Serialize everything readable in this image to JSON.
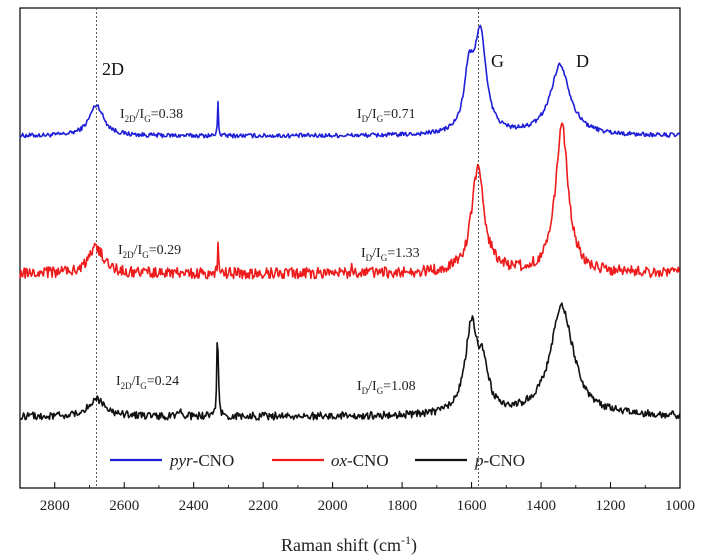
{
  "chart_data": {
    "type": "line",
    "title": "",
    "xlabel": "Raman shift (cm",
    "xlabel_sup": "-1",
    "xlabel_close": ")",
    "ylabel": "",
    "xlim": [
      2900,
      1000
    ],
    "x_reversed": true,
    "x_ticks": [
      "2800",
      "2600",
      "2400",
      "2200",
      "2000",
      "1800",
      "1600",
      "1400",
      "1200",
      "1000"
    ],
    "grid": false,
    "legend_position": "bottom-inside",
    "reference_lines": [
      2680,
      1580
    ],
    "series": [
      {
        "name": "pyr-CNO",
        "name_italic": "pyr",
        "name_rest": "-CNO",
        "color": "#1f1fd8",
        "baseline": 0.0,
        "peaks": [
          [
            2680,
            0.28,
            25
          ],
          [
            1608,
            0.5,
            16
          ],
          [
            1575,
            0.9,
            20
          ],
          [
            1345,
            0.64,
            34
          ],
          [
            2330,
            0.32,
            1.5
          ]
        ],
        "noise": 0.02
      },
      {
        "name": "ox-CNO",
        "name_italic": "ox",
        "name_rest": "-CNO",
        "color": "#ee1c1c",
        "baseline": -1.25,
        "peaks": [
          [
            2680,
            0.23,
            27
          ],
          [
            1582,
            0.95,
            22
          ],
          [
            1340,
            1.35,
            22
          ],
          [
            2330,
            0.27,
            1.5
          ],
          [
            1945,
            0.12,
            1.5
          ]
        ],
        "noise": 0.05
      },
      {
        "name": "p-CNO",
        "name_italic": "p",
        "name_rest": "-CNO",
        "color": "#111111",
        "baseline": -2.55,
        "peaks": [
          [
            2680,
            0.16,
            28
          ],
          [
            1600,
            0.8,
            22
          ],
          [
            1565,
            0.35,
            16
          ],
          [
            1340,
            1.0,
            40
          ],
          [
            2332,
            0.5,
            1.5
          ],
          [
            2330,
            0.38,
            3
          ],
          [
            2440,
            0.07,
            4
          ]
        ],
        "noise": 0.035
      }
    ]
  },
  "annotations": {
    "peak_2d": "2D",
    "peak_g": "G",
    "peak_d": "D",
    "ratios": [
      {
        "i1": "I",
        "s1": "2D",
        "i2": "/I",
        "s2": "G",
        "val": "=0.38"
      },
      {
        "i1": "I",
        "s1": "D",
        "i2": "/I",
        "s2": "G",
        "val": "=0.71"
      },
      {
        "i1": "I",
        "s1": "2D",
        "i2": "/I",
        "s2": "G",
        "val": "=0.29"
      },
      {
        "i1": "I",
        "s1": "D",
        "i2": "/I",
        "s2": "G",
        "val": "=1.33"
      },
      {
        "i1": "I",
        "s1": "2D",
        "i2": "/I",
        "s2": "G",
        "val": "=0.24"
      },
      {
        "i1": "I",
        "s1": "D",
        "i2": "/I",
        "s2": "G",
        "val": "=1.08"
      }
    ]
  }
}
